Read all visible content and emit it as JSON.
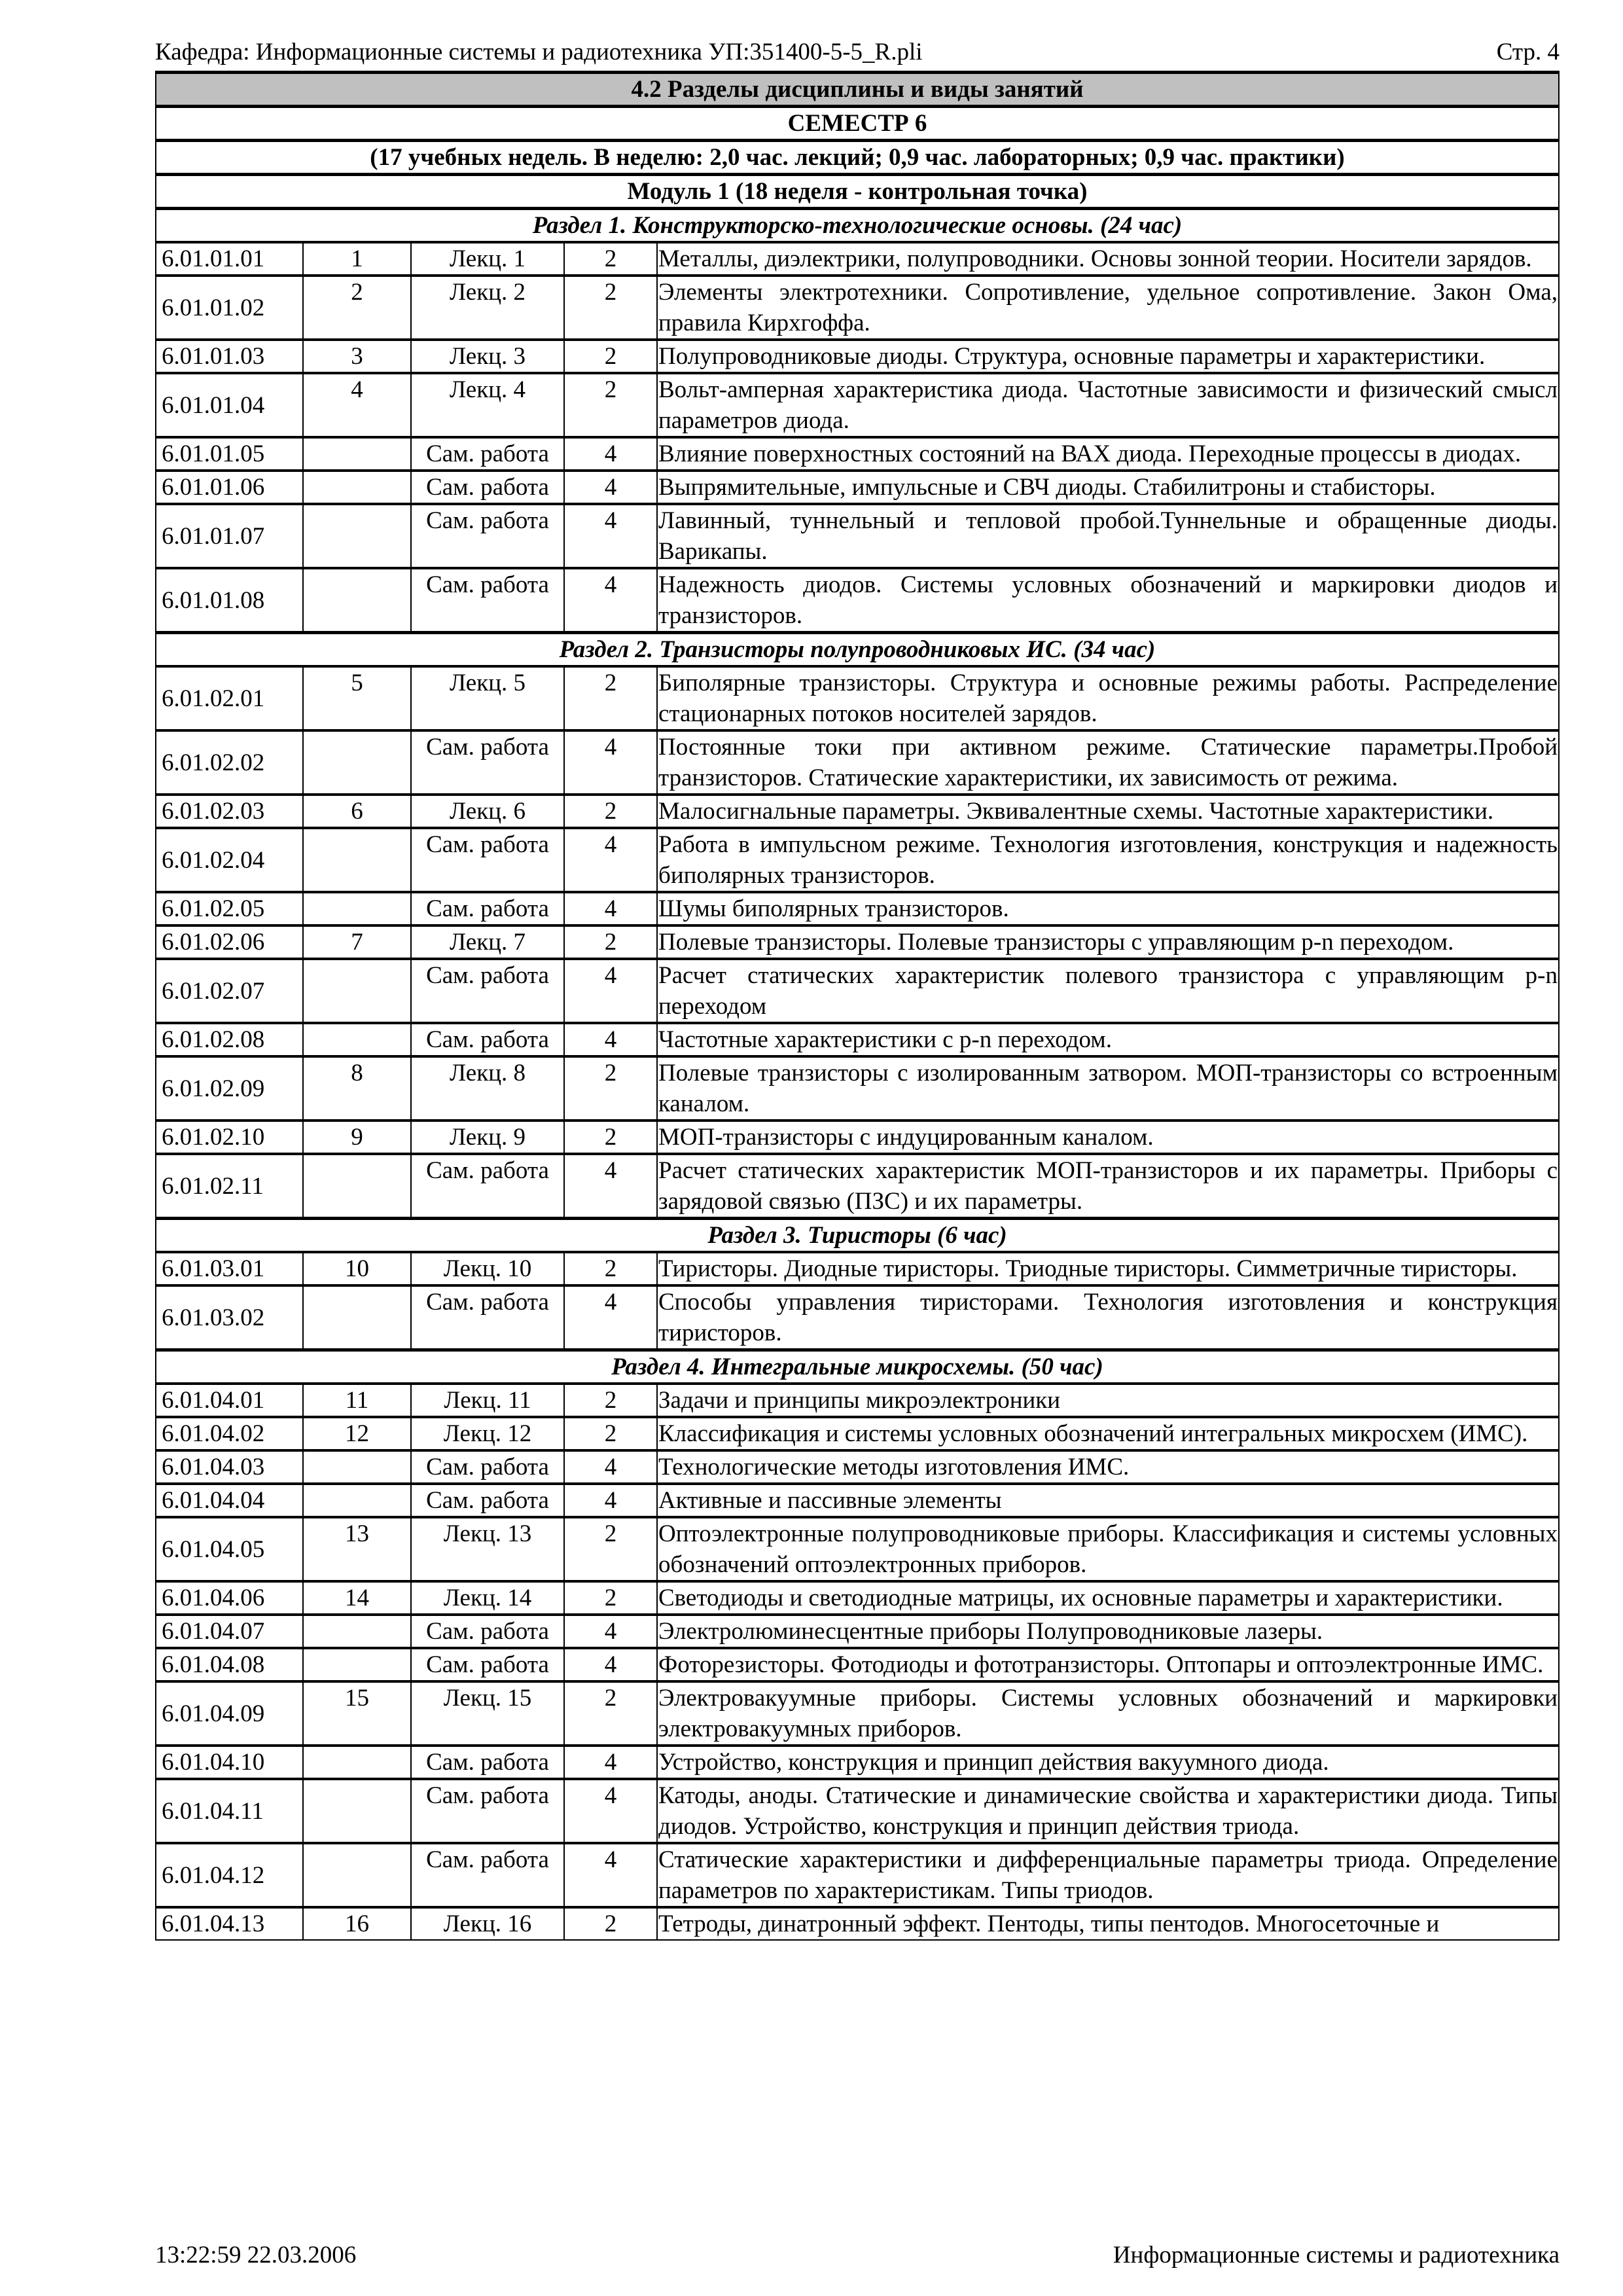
{
  "header": {
    "left": "Кафедра: Информационные системы и радиотехника УП:351400-5-5_R.pli",
    "right": "Стр. 4"
  },
  "titles": [
    "4.2 Разделы дисциплины и виды занятий",
    "СЕМЕСТР 6",
    "(17 учебных недель. В неделю: 2,0 час. лекций; 0,9 час. лабораторных; 0,9 час. практики)",
    "Модуль 1 (18 неделя - контрольная точка)"
  ],
  "sections": [
    {
      "title": "Раздел 1. Конструкторско-технологические основы. (24 час)",
      "rows": [
        [
          "6.01.01.01",
          "1",
          "Лекц. 1",
          "2",
          "Металлы, диэлектрики, полупроводники. Основы зонной теории. Носители зарядов."
        ],
        [
          "6.01.01.02",
          "2",
          "Лекц. 2",
          "2",
          "Элементы электротехники. Сопротивление, удельное сопротивление. Закон Ома, правила Кирхгоффа."
        ],
        [
          "6.01.01.03",
          "3",
          "Лекц. 3",
          "2",
          "Полупроводниковые диоды. Структура, основные параметры и характеристики."
        ],
        [
          "6.01.01.04",
          "4",
          "Лекц. 4",
          "2",
          "Вольт-амперная  характеристика диода. Частотные зависимости и физический смысл параметров диода."
        ],
        [
          "6.01.01.05",
          "",
          "Сам. работа",
          "4",
          "Влияние поверхностных состояний на ВАХ диода. Переходные процессы в диодах."
        ],
        [
          "6.01.01.06",
          "",
          "Сам. работа",
          "4",
          "Выпрямительные, импульсные и СВЧ диоды. Стабилитроны и стабисторы."
        ],
        [
          "6.01.01.07",
          "",
          "Сам. работа",
          "4",
          "Лавинный, туннельный и тепловой пробой.Туннельные и обращенные диоды. Варикапы."
        ],
        [
          "6.01.01.08",
          "",
          "Сам. работа",
          "4",
          "Надежность диодов. Системы условных обозначений и маркировки диодов и транзисторов."
        ]
      ]
    },
    {
      "title": "Раздел 2. Транзисторы полупроводниковых ИС. (34 час)",
      "rows": [
        [
          "6.01.02.01",
          "5",
          "Лекц. 5",
          "2",
          "Биполярные транзисторы. Структура и основные режимы работы. Распределение стационарных потоков носителей зарядов."
        ],
        [
          "6.01.02.02",
          "",
          "Сам. работа",
          "4",
          "Постоянные токи при активном режиме. Статические параметры.Пробой транзисторов. Статические характеристики, их зависимость от режима."
        ],
        [
          "6.01.02.03",
          "6",
          "Лекц. 6",
          "2",
          "Малосигнальные параметры. Эквивалентные схемы. Частотные характеристики."
        ],
        [
          "6.01.02.04",
          "",
          "Сам. работа",
          "4",
          "Работа в импульсном режиме. Технология изготовления, конструкция и надежность биполярных транзисторов."
        ],
        [
          "6.01.02.05",
          "",
          "Сам. работа",
          "4",
          "Шумы биполярных транзисторов."
        ],
        [
          "6.01.02.06",
          "7",
          "Лекц. 7",
          "2",
          "Полевые транзисторы. Полевые транзисторы с управляющим p-n переходом."
        ],
        [
          "6.01.02.07",
          "",
          "Сам. работа",
          "4",
          "Расчет статических характеристик полевого транзистора с управляющим p-n переходом"
        ],
        [
          "6.01.02.08",
          "",
          "Сам. работа",
          "4",
          "Частотные характеристики с p-n переходом."
        ],
        [
          "6.01.02.09",
          "8",
          "Лекц. 8",
          "2",
          "Полевые транзисторы с изолированным затвором. МОП-транзисторы со встроенным каналом."
        ],
        [
          "6.01.02.10",
          "9",
          "Лекц. 9",
          "2",
          "МОП-транзисторы с индуцированным каналом."
        ],
        [
          "6.01.02.11",
          "",
          "Сам. работа",
          "4",
          "Расчет статических характеристик МОП-транзисторов и их параметры. Приборы с зарядовой связью (ПЗС) и их параметры."
        ]
      ]
    },
    {
      "title": "Раздел 3. Тиристоры (6 час)",
      "rows": [
        [
          "6.01.03.01",
          "10",
          "Лекц. 10",
          "2",
          "Тиристоры. Диодные тиристоры. Триодные тиристоры. Симметричные тиристоры."
        ],
        [
          "6.01.03.02",
          "",
          "Сам. работа",
          "4",
          "Способы управления тиристорами. Технология изготовления и конструкция тиристоров."
        ]
      ]
    },
    {
      "title": "Раздел 4. Интегральные микросхемы. (50 час)",
      "rows": [
        [
          "6.01.04.01",
          "11",
          "Лекц. 11",
          "2",
          "Задачи и принципы микроэлектроники"
        ],
        [
          "6.01.04.02",
          "12",
          "Лекц. 12",
          "2",
          "Классификация и системы условных обозначений интегральных микросхем (ИМС)."
        ],
        [
          "6.01.04.03",
          "",
          "Сам. работа",
          "4",
          "Технологические методы изготовления ИМС."
        ],
        [
          "6.01.04.04",
          "",
          "Сам. работа",
          "4",
          "Активные и пассивные элементы"
        ],
        [
          "6.01.04.05",
          "13",
          "Лекц. 13",
          "2",
          "Оптоэлектронные полупроводниковые приборы. Классификация и системы условных обозначений оптоэлектронных приборов."
        ],
        [
          "6.01.04.06",
          "14",
          "Лекц. 14",
          "2",
          "Светодиоды и светодиодные матрицы, их основные параметры и характеристики."
        ],
        [
          "6.01.04.07",
          "",
          "Сам. работа",
          "4",
          "Электролюминесцентные приборы Полупроводниковые лазеры."
        ],
        [
          "6.01.04.08",
          "",
          "Сам. работа",
          "4",
          "Фоторезисторы. Фотодиоды и фототранзисторы. Оптопары и оптоэлектронные ИМС."
        ],
        [
          "6.01.04.09",
          "15",
          "Лекц. 15",
          "2",
          "Электровакуумные приборы. Системы условных обозначений и маркировки электровакуумных приборов."
        ],
        [
          "6.01.04.10",
          "",
          "Сам. работа",
          "4",
          "Устройство, конструкция и принцип действия вакуумного диода."
        ],
        [
          "6.01.04.11",
          "",
          "Сам. работа",
          "4",
          "Катоды, аноды. Статические и динамические свойства и характеристики диода. Типы диодов. Устройство, конструкция и принцип действия триода."
        ],
        [
          "6.01.04.12",
          "",
          "Сам. работа",
          "4",
          "Статические характеристики и дифференциальные параметры триода. Определение параметров по характеристикам. Типы триодов."
        ],
        [
          "6.01.04.13",
          "16",
          "Лекц. 16",
          "2",
          "Тетроды, динатронный эффект. Пентоды, типы пентодов. Многосеточные и"
        ]
      ]
    }
  ],
  "footer": {
    "left": "13:22:59 22.03.2006",
    "right": "Информационные системы и радиотехника"
  }
}
